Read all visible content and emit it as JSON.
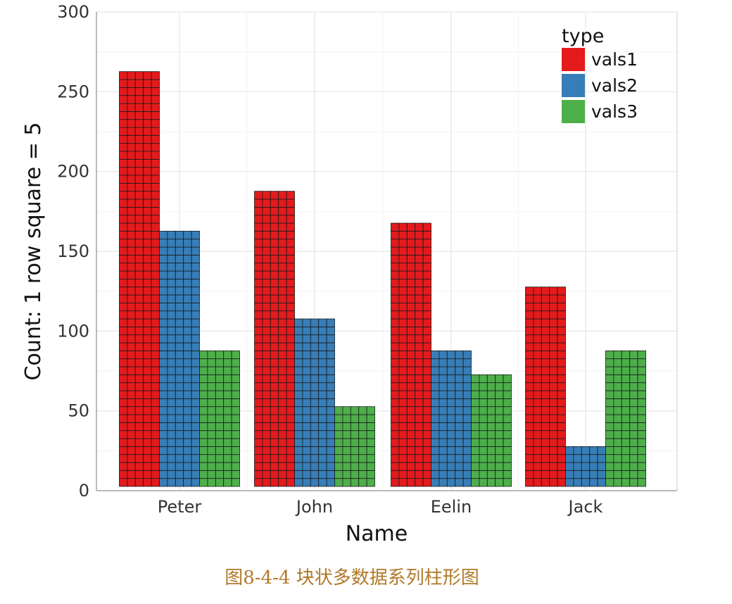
{
  "chart_data": {
    "type": "bar",
    "xlabel": "Name",
    "ylabel": "Count: 1 row square = 5",
    "ylim": [
      0,
      300
    ],
    "yticks": [
      0,
      50,
      100,
      150,
      200,
      250,
      300
    ],
    "grid": true,
    "legend": {
      "title": "type",
      "position": "top-right"
    },
    "categories": [
      "Peter",
      "John",
      "Eelin",
      "Jack"
    ],
    "series": [
      {
        "name": "vals1",
        "color": "#e41a1c",
        "values": [
          260,
          185,
          165,
          125
        ]
      },
      {
        "name": "vals2",
        "color": "#377eb8",
        "values": [
          160,
          105,
          85,
          25
        ]
      },
      {
        "name": "vals3",
        "color": "#4daf4a",
        "values": [
          85,
          50,
          70,
          85
        ]
      }
    ]
  },
  "caption": "图8-4-4 块状多数据系列柱形图"
}
